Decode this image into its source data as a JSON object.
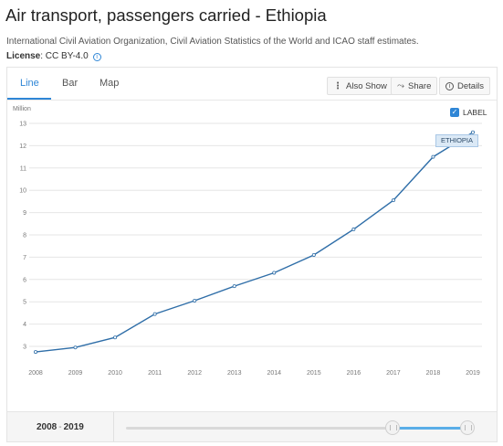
{
  "header": {
    "title": "Air transport, passengers carried - Ethiopia",
    "source": "International Civil Aviation Organization, Civil Aviation Statistics of the World and ICAO staff estimates.",
    "license_label": "License",
    "license_value": ": CC BY-4.0",
    "info_glyph": "i"
  },
  "tabs": [
    {
      "label": "Line",
      "active": true
    },
    {
      "label": "Bar",
      "active": false
    },
    {
      "label": "Map",
      "active": false
    }
  ],
  "toolbar": {
    "also_show": "Also Show",
    "share": "Share",
    "details": "Details",
    "dots_glyph": "⋮",
    "share_glyph": "⤳",
    "details_glyph": "i"
  },
  "legend": {
    "toggle_label": "LABEL",
    "checked": true,
    "check_glyph": "✓",
    "series_tag": "ETHIOPIA"
  },
  "footer": {
    "range_start": "2008",
    "range_sep": "-",
    "range_end": "2019"
  },
  "colors": {
    "accent": "#2f86d6",
    "line": "#2f6ea8",
    "grid": "#e6e6e6",
    "axis_text": "#777777"
  },
  "chart_data": {
    "type": "line",
    "ylabel": "Million",
    "x": [
      2008,
      2009,
      2010,
      2011,
      2012,
      2013,
      2014,
      2015,
      2016,
      2017,
      2018,
      2019
    ],
    "series": [
      {
        "name": "ETHIOPIA",
        "values": [
          2.75,
          2.95,
          3.4,
          4.45,
          5.05,
          5.7,
          6.3,
          7.1,
          8.25,
          9.55,
          11.5,
          12.6
        ]
      }
    ],
    "yticks": [
      3,
      4,
      5,
      6,
      7,
      8,
      9,
      10,
      11,
      12,
      13
    ],
    "ylim": [
      2.5,
      13
    ],
    "grid": true
  }
}
